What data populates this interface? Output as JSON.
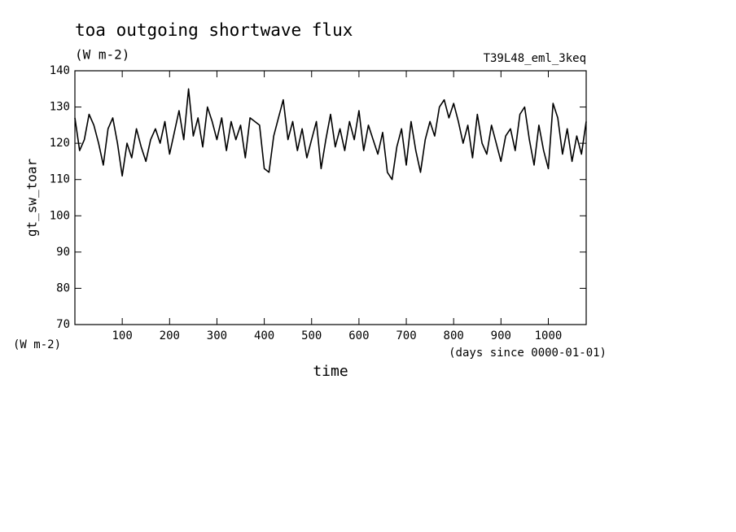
{
  "chart_data": {
    "type": "line",
    "title": "toa outgoing shortwave flux",
    "subtitle": "(W m-2)",
    "annotation": "T39L48_eml_3keq",
    "y_label": "gt_sw_toar",
    "y_unit": "(W m-2)",
    "x_label": "time",
    "x_unit": "(days since 0000-01-01)",
    "color": "#000000",
    "x": [
      0,
      10,
      20,
      30,
      40,
      50,
      60,
      70,
      80,
      90,
      100,
      110,
      120,
      130,
      140,
      150,
      160,
      170,
      180,
      190,
      200,
      210,
      220,
      230,
      240,
      250,
      260,
      270,
      280,
      290,
      300,
      310,
      320,
      330,
      340,
      350,
      360,
      370,
      380,
      390,
      400,
      410,
      420,
      430,
      440,
      450,
      460,
      470,
      480,
      490,
      500,
      510,
      520,
      530,
      540,
      550,
      560,
      570,
      580,
      590,
      600,
      610,
      620,
      630,
      640,
      650,
      660,
      670,
      680,
      690,
      700,
      710,
      720,
      730,
      740,
      750,
      760,
      770,
      780,
      790,
      800,
      810,
      820,
      830,
      840,
      850,
      860,
      870,
      880,
      890,
      900,
      910,
      920,
      930,
      940,
      950,
      960,
      970,
      980,
      990,
      1000,
      1010,
      1020,
      1030,
      1040,
      1050,
      1060,
      1070,
      1080
    ],
    "values": [
      127,
      118,
      121,
      128,
      125,
      120,
      114,
      124,
      127,
      120,
      111,
      120,
      116,
      124,
      119,
      115,
      121,
      124,
      120,
      126,
      117,
      123,
      129,
      121,
      135,
      122,
      127,
      119,
      130,
      126,
      121,
      127,
      118,
      126,
      121,
      125,
      116,
      127,
      126,
      125,
      113,
      112,
      122,
      127,
      132,
      121,
      126,
      118,
      124,
      116,
      121,
      126,
      113,
      121,
      128,
      119,
      124,
      118,
      126,
      121,
      129,
      118,
      125,
      121,
      117,
      123,
      112,
      110,
      119,
      124,
      114,
      126,
      118,
      112,
      121,
      126,
      122,
      130,
      132,
      127,
      131,
      126,
      120,
      125,
      116,
      128,
      120,
      117,
      125,
      120,
      115,
      122,
      124,
      118,
      128,
      130,
      121,
      114,
      125,
      118,
      113,
      131,
      127,
      117,
      124,
      115,
      122,
      117,
      126
    ],
    "xlim": [
      0,
      1080
    ],
    "ylim": [
      70,
      140
    ],
    "xticks": [
      100,
      200,
      300,
      400,
      500,
      600,
      700,
      800,
      900,
      1000
    ],
    "yticks": [
      70,
      80,
      90,
      100,
      110,
      120,
      130,
      140
    ]
  }
}
